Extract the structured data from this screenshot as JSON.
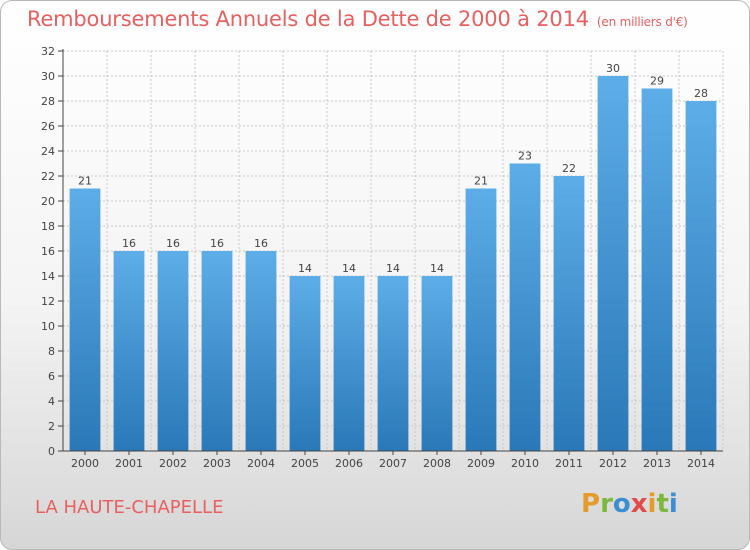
{
  "header": {
    "title": "Remboursements Annuels de la Dette de 2000 à 2014",
    "subtitle": "(en milliers d'€)"
  },
  "footer": {
    "place": "LA HAUTE-CHAPELLE",
    "logo_text": "Proxiti"
  },
  "colors": {
    "bar_top": "#5dade8",
    "bar_bottom": "#2a78b7",
    "title": "#e8605f",
    "grid": "#c8c8c8"
  },
  "chart_data": {
    "type": "bar",
    "title": "Remboursements Annuels de la Dette de 2000 à 2014",
    "subtitle": "(en milliers d'€)",
    "categories": [
      "2000",
      "2001",
      "2002",
      "2003",
      "2004",
      "2005",
      "2006",
      "2007",
      "2008",
      "2009",
      "2010",
      "2011",
      "2012",
      "2013",
      "2014"
    ],
    "values": [
      21,
      16,
      16,
      16,
      16,
      14,
      14,
      14,
      14,
      21,
      23,
      22,
      30,
      29,
      28
    ],
    "ylim": [
      0,
      32
    ],
    "yticks": [
      0,
      2,
      4,
      6,
      8,
      10,
      12,
      14,
      16,
      18,
      20,
      22,
      24,
      26,
      28,
      30,
      32
    ],
    "grid": true
  }
}
